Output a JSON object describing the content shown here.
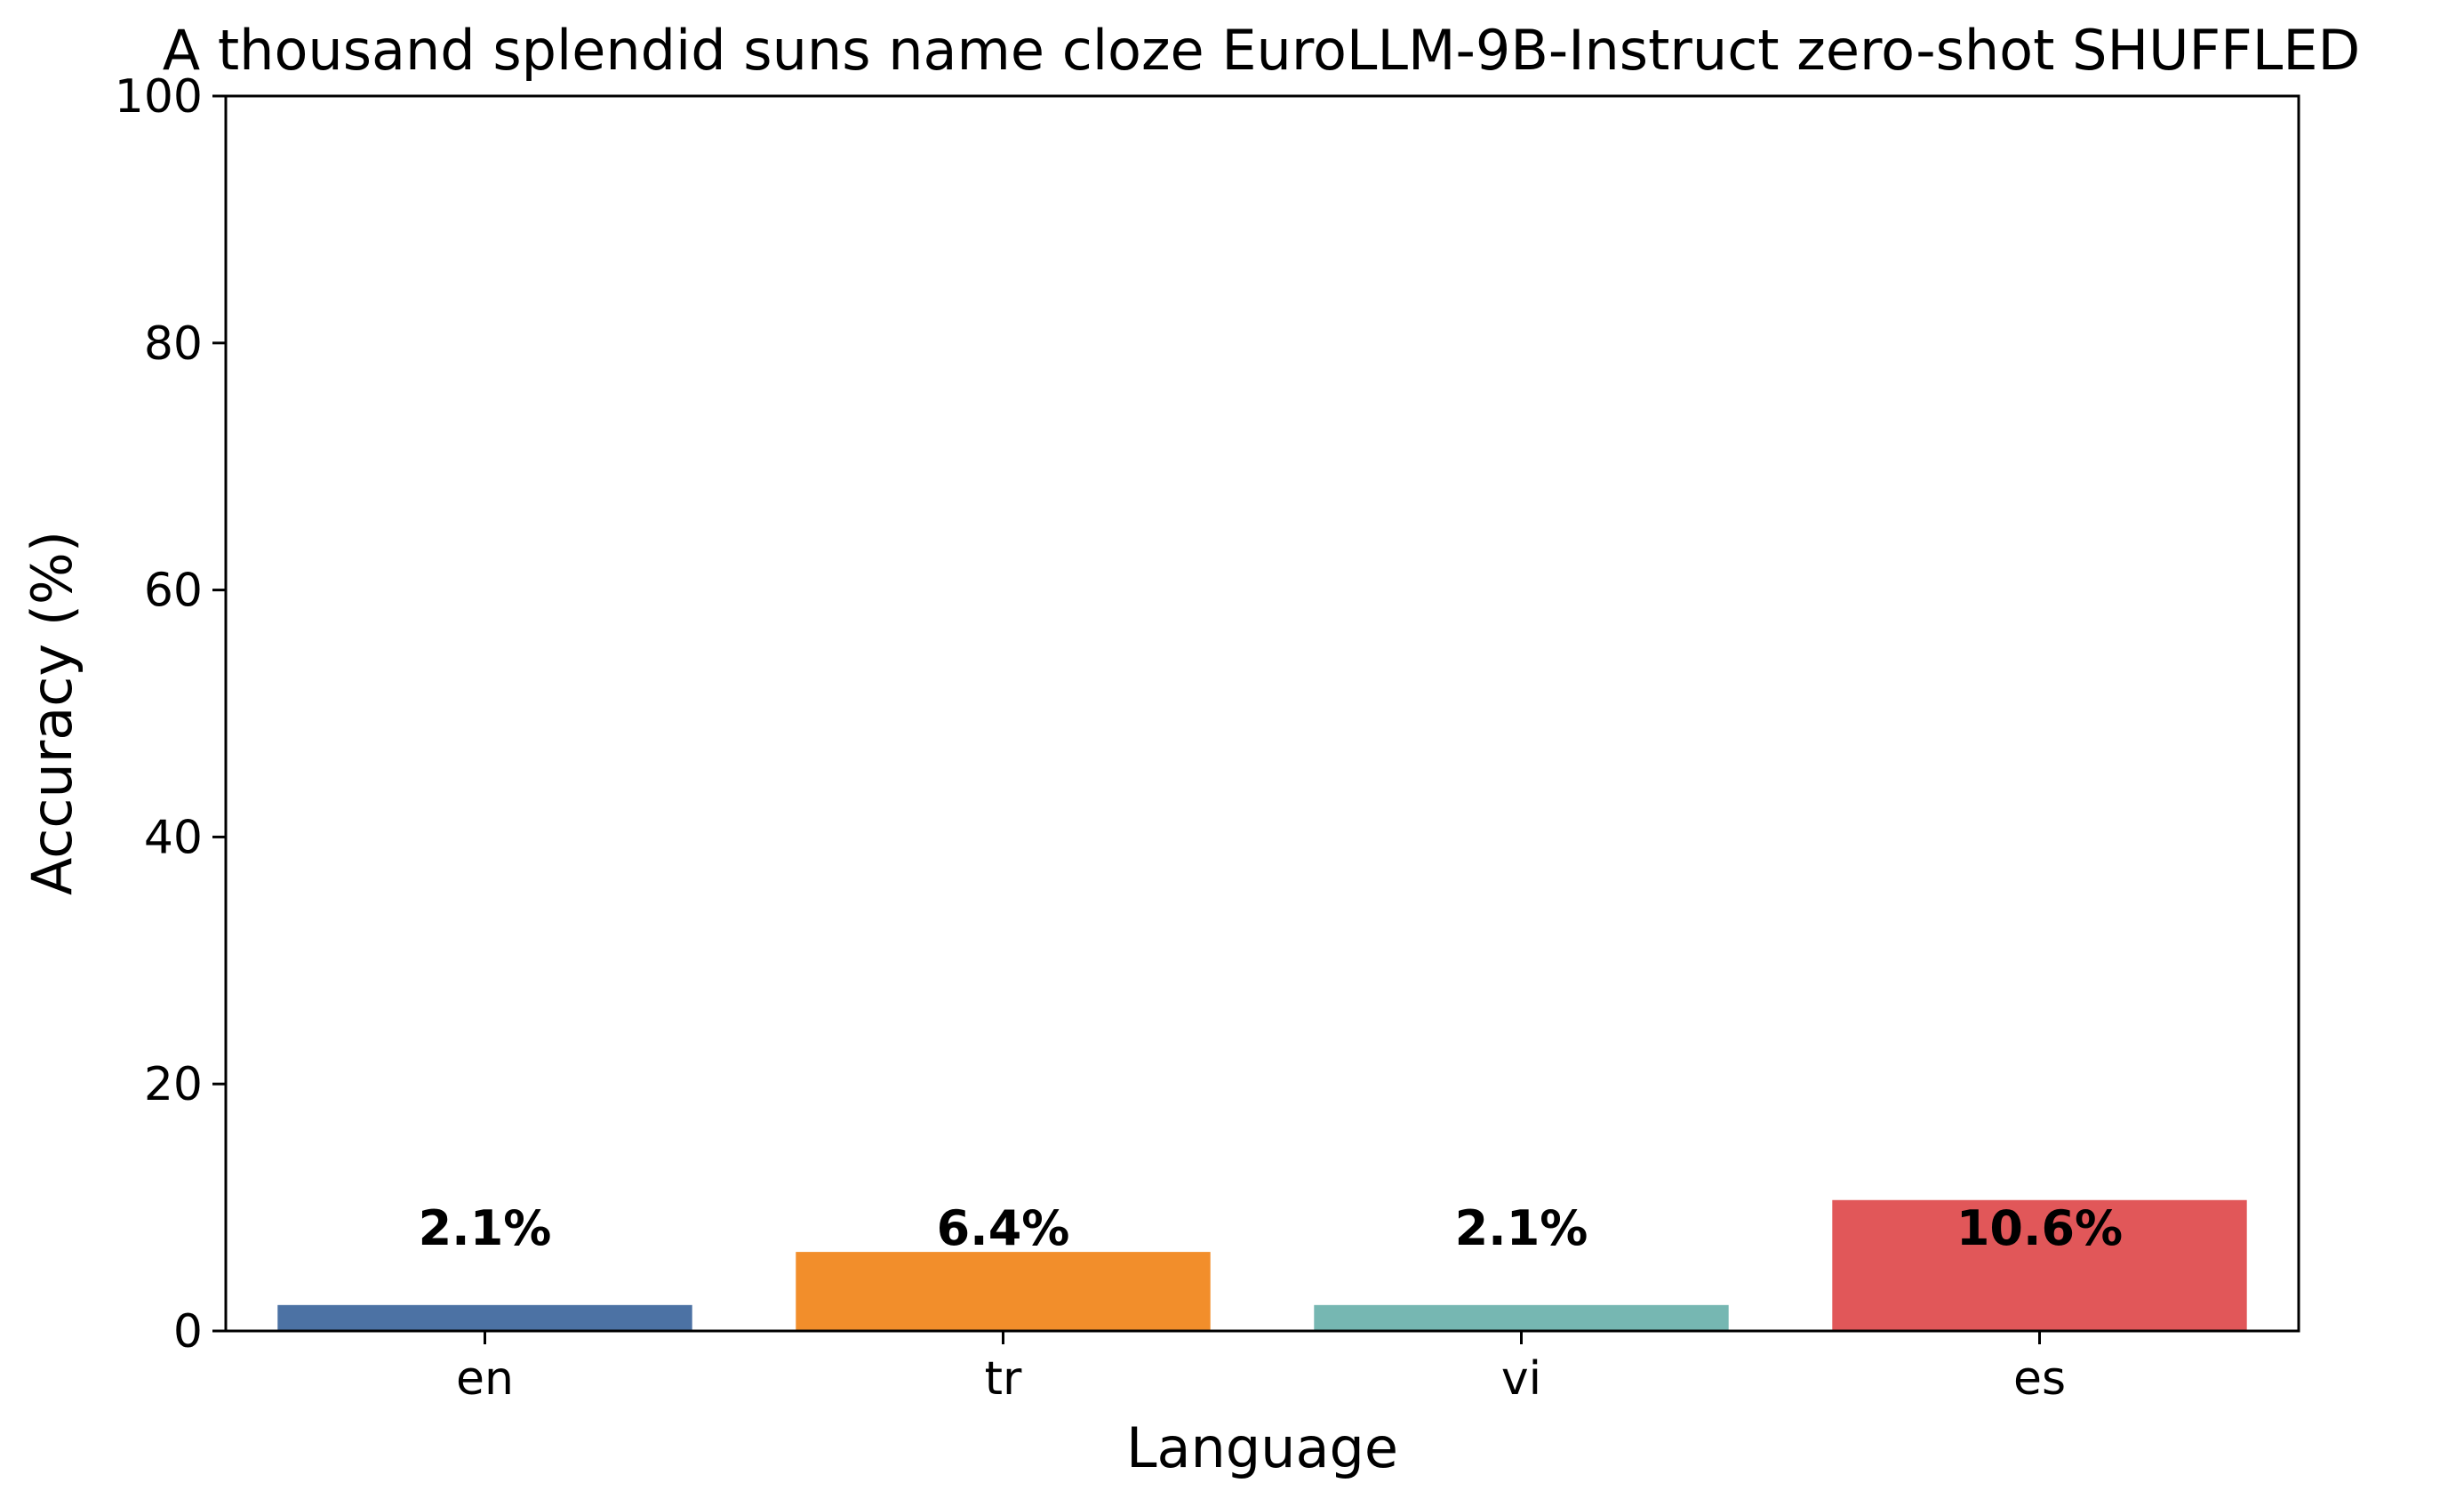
{
  "chart_data": {
    "type": "bar",
    "title": "A thousand splendid suns name cloze EuroLLM-9B-Instruct zero-shot SHUFFLED",
    "xlabel": "Language",
    "ylabel": "Accuracy (%)",
    "categories": [
      "en",
      "tr",
      "vi",
      "es"
    ],
    "values": [
      2.1,
      6.4,
      2.1,
      10.6
    ],
    "value_labels": [
      "2.1%",
      "6.4%",
      "2.1%",
      "10.6%"
    ],
    "colors": [
      "#4c72a4",
      "#f28e2b",
      "#76b7b2",
      "#e15759"
    ],
    "ylim": [
      0,
      100
    ],
    "yticks": [
      0,
      20,
      40,
      60,
      80,
      100
    ],
    "ytick_labels": [
      "0",
      "20",
      "40",
      "60",
      "80",
      "100"
    ],
    "grid": false,
    "legend": "none"
  }
}
